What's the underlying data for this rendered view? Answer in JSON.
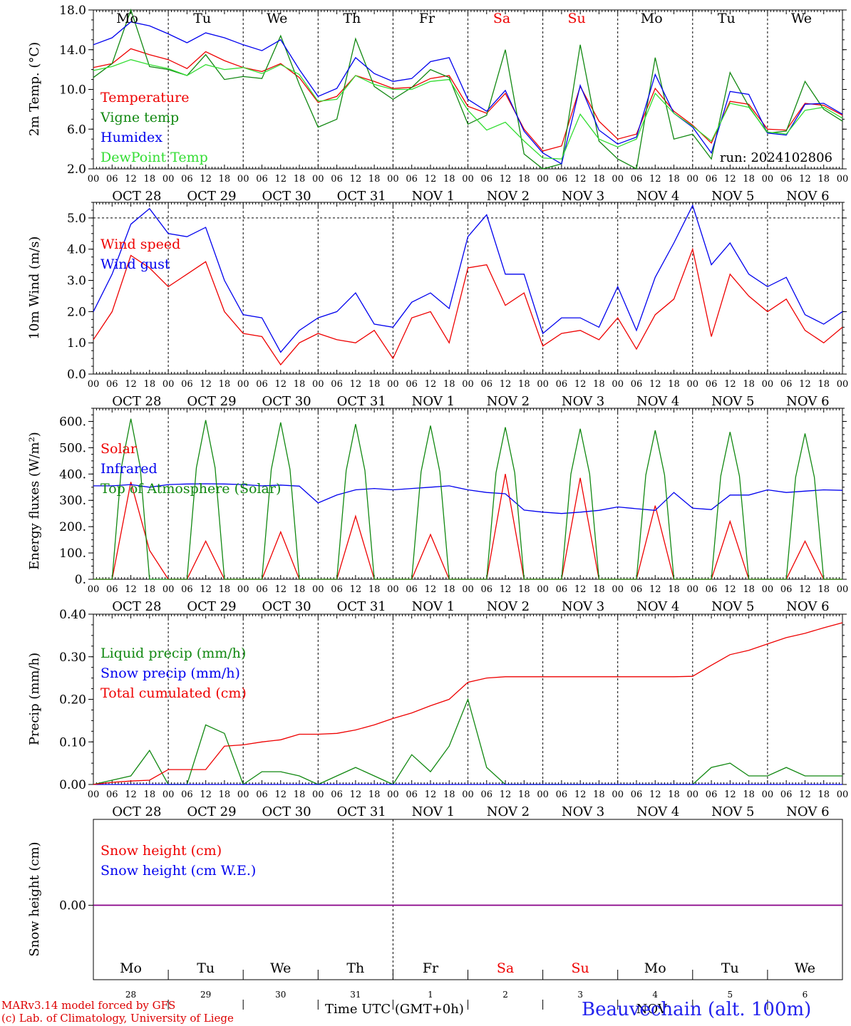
{
  "colors": {
    "red": "#ee0000",
    "green": "#118811",
    "blue": "#0000ee",
    "lightgreen": "#33dd33",
    "purple": "#880088",
    "weekend": "#ee0000"
  },
  "days": {
    "top_weekdays": [
      "Mo",
      "Tu",
      "We",
      "Th",
      "Fr",
      "Sa",
      "Su",
      "Mo",
      "Tu",
      "We"
    ],
    "bottom_weekdays": [
      "Mo",
      "Tu",
      "We",
      "Th",
      "Fr",
      "Sa",
      "Su",
      "Mo",
      "Tu",
      "We"
    ],
    "bottom_daynums": [
      "28",
      "29",
      "30",
      "31",
      "1",
      "2",
      "3",
      "4",
      "5",
      "6"
    ],
    "weekend_indices": [
      5,
      6
    ],
    "hour_ticks": [
      "00",
      "06",
      "12",
      "18"
    ],
    "date_labels": [
      "OCT 28",
      "OCT 29",
      "OCT 30",
      "OCT 31",
      "NOV  1",
      "NOV  2",
      "NOV  3",
      "NOV  4",
      "NOV  5",
      "NOV  6"
    ]
  },
  "chart_data": [
    {
      "type": "line",
      "ylabel": "2m Temp. (°C)",
      "ylim": [
        2.0,
        18.0
      ],
      "yticks": [
        "2.0",
        "6.0",
        "10.0",
        "14.0",
        "18.0"
      ],
      "annotation": "run: 2024102806",
      "x_hours": [
        0,
        6,
        12,
        18,
        24,
        30,
        36,
        42,
        48,
        54,
        60,
        66,
        72,
        78,
        84,
        90,
        96,
        102,
        108,
        114,
        120,
        126,
        132,
        138,
        144,
        150,
        156,
        162,
        168,
        174,
        180,
        186,
        192,
        198,
        204,
        210,
        216,
        222,
        228,
        234,
        240
      ],
      "series": [
        {
          "name": "Temperature",
          "color": "red",
          "values": [
            12.2,
            12.6,
            14.1,
            13.5,
            13.0,
            12.1,
            13.8,
            12.9,
            12.2,
            11.8,
            12.6,
            11.2,
            8.7,
            9.3,
            11.4,
            10.8,
            10.1,
            10.2,
            11.1,
            11.4,
            8.3,
            7.6,
            9.6,
            6.0,
            3.8,
            4.3,
            10.3,
            6.8,
            5.0,
            5.5,
            10.1,
            7.8,
            6.4,
            4.6,
            8.8,
            8.5,
            6.0,
            5.9,
            8.6,
            8.4,
            7.4
          ]
        },
        {
          "name": "Vigne temp",
          "color": "green",
          "values": [
            11.2,
            12.6,
            18.2,
            12.3,
            12.0,
            11.4,
            13.5,
            11.0,
            11.3,
            11.1,
            15.4,
            10.5,
            6.2,
            7.0,
            15.1,
            10.3,
            9.0,
            10.2,
            12.0,
            11.2,
            6.5,
            7.4,
            14.0,
            3.5,
            1.5,
            2.5,
            14.5,
            4.8,
            3.0,
            1.8,
            13.2,
            5.0,
            5.5,
            3.0,
            11.7,
            8.3,
            5.6,
            5.8,
            10.8,
            8.0,
            6.8
          ]
        },
        {
          "name": "Humidex",
          "color": "blue",
          "values": [
            14.5,
            15.2,
            16.8,
            16.4,
            15.6,
            14.7,
            15.7,
            15.2,
            14.5,
            13.9,
            15.0,
            12.0,
            9.3,
            10.1,
            13.2,
            11.6,
            10.8,
            11.1,
            12.8,
            13.2,
            9.0,
            7.8,
            9.9,
            5.8,
            3.6,
            2.5,
            10.4,
            5.9,
            4.5,
            5.2,
            11.5,
            7.6,
            6.2,
            3.6,
            9.8,
            9.5,
            5.6,
            5.4,
            8.5,
            8.6,
            7.5
          ]
        },
        {
          "name": "DewPoint Temp",
          "color": "lightgreen",
          "values": [
            11.9,
            12.3,
            13.0,
            12.5,
            12.1,
            11.4,
            12.5,
            12.0,
            12.2,
            11.6,
            12.5,
            11.5,
            8.8,
            9.0,
            11.4,
            10.5,
            10.0,
            10.0,
            10.8,
            11.0,
            7.9,
            5.9,
            6.7,
            4.8,
            3.1,
            3.0,
            7.5,
            5.0,
            4.2,
            5.0,
            9.6,
            7.6,
            6.3,
            4.8,
            8.6,
            8.2,
            5.7,
            5.5,
            7.9,
            8.2,
            7.1
          ]
        }
      ]
    },
    {
      "type": "line",
      "ylabel": "10m Wind (m/s)",
      "ylim": [
        0.0,
        5.5
      ],
      "yticks": [
        "0.0",
        "1.0",
        "2.0",
        "3.0",
        "4.0",
        "5.0"
      ],
      "ref_line": 5.0,
      "x_hours": [
        0,
        6,
        12,
        18,
        24,
        30,
        36,
        42,
        48,
        54,
        60,
        66,
        72,
        78,
        84,
        90,
        96,
        102,
        108,
        114,
        120,
        126,
        132,
        138,
        144,
        150,
        156,
        162,
        168,
        174,
        180,
        186,
        192,
        198,
        204,
        210,
        216,
        222,
        228,
        234,
        240
      ],
      "series": [
        {
          "name": "Wind speed",
          "color": "red",
          "values": [
            1.1,
            2.0,
            3.8,
            3.4,
            2.8,
            3.2,
            3.6,
            2.0,
            1.3,
            1.2,
            0.3,
            1.0,
            1.3,
            1.1,
            1.0,
            1.4,
            0.5,
            1.8,
            2.0,
            1.0,
            3.4,
            3.5,
            2.2,
            2.6,
            0.9,
            1.3,
            1.4,
            1.1,
            1.8,
            0.8,
            1.9,
            2.4,
            4.0,
            1.2,
            3.2,
            2.5,
            2.0,
            2.4,
            1.4,
            1.0,
            1.5
          ]
        },
        {
          "name": "Wind gust",
          "color": "blue",
          "values": [
            2.0,
            3.2,
            4.8,
            5.3,
            4.5,
            4.4,
            4.7,
            3.0,
            1.9,
            1.8,
            0.7,
            1.4,
            1.8,
            2.0,
            2.6,
            1.6,
            1.5,
            2.3,
            2.6,
            2.1,
            4.4,
            5.1,
            3.2,
            3.2,
            1.3,
            1.8,
            1.8,
            1.5,
            2.8,
            1.4,
            3.1,
            4.2,
            5.4,
            3.5,
            4.2,
            3.2,
            2.8,
            3.1,
            1.9,
            1.6,
            2.0
          ]
        }
      ]
    },
    {
      "type": "line",
      "ylabel": "Energy fluxes (W/m²)",
      "ylim": [
        0,
        650
      ],
      "yticks": [
        "0.",
        "100.",
        "200.",
        "300.",
        "400.",
        "500.",
        "600."
      ],
      "x_hours": [
        0,
        6,
        12,
        18,
        24,
        30,
        36,
        42,
        48,
        54,
        60,
        66,
        72,
        78,
        84,
        90,
        96,
        102,
        108,
        114,
        120,
        126,
        132,
        138,
        144,
        150,
        156,
        162,
        168,
        174,
        180,
        186,
        192,
        198,
        204,
        210,
        216,
        222,
        228,
        234,
        240
      ],
      "series": [
        {
          "name": "Solar",
          "color": "red",
          "values": [
            0,
            0,
            370,
            110,
            0,
            0,
            145,
            0,
            0,
            0,
            180,
            0,
            0,
            0,
            240,
            0,
            0,
            0,
            170,
            0,
            0,
            0,
            400,
            0,
            0,
            0,
            385,
            0,
            0,
            0,
            280,
            0,
            0,
            0,
            220,
            0,
            0,
            0,
            145,
            0,
            0
          ]
        },
        {
          "name": "Infrared",
          "color": "blue",
          "values": [
            355,
            355,
            360,
            350,
            360,
            362,
            363,
            362,
            360,
            355,
            358,
            354,
            290,
            320,
            340,
            345,
            340,
            345,
            350,
            355,
            340,
            330,
            325,
            263,
            255,
            250,
            255,
            262,
            275,
            268,
            262,
            330,
            270,
            265,
            320,
            320,
            340,
            330,
            335,
            340,
            338
          ]
        },
        {
          "name": "Top of Atmosphere (Solar)",
          "color": "green",
          "peaks_at_12": [
            610,
            605,
            596,
            590,
            584,
            578,
            572,
            566,
            560,
            554
          ]
        }
      ]
    },
    {
      "type": "line",
      "ylabel": "Precip (mm/h)",
      "ylim": [
        0.0,
        0.4
      ],
      "yticks": [
        "0.00",
        "0.10",
        "0.20",
        "0.30",
        "0.40"
      ],
      "x_hours": [
        0,
        6,
        12,
        18,
        24,
        30,
        36,
        42,
        48,
        54,
        60,
        66,
        72,
        78,
        84,
        90,
        96,
        102,
        108,
        114,
        120,
        126,
        132,
        138,
        144,
        150,
        156,
        162,
        168,
        174,
        180,
        186,
        192,
        198,
        204,
        210,
        216,
        222,
        228,
        234,
        240
      ],
      "series": [
        {
          "name": "Liquid precip (mm/h)",
          "color": "green",
          "values": [
            0.0,
            0.01,
            0.02,
            0.08,
            0.0,
            0.0,
            0.14,
            0.12,
            0.0,
            0.03,
            0.03,
            0.02,
            0.0,
            0.02,
            0.04,
            0.02,
            0.0,
            0.07,
            0.03,
            0.09,
            0.2,
            0.04,
            0.0,
            0.0,
            0.0,
            0.0,
            0.0,
            0.0,
            0.0,
            0.0,
            0.0,
            0.0,
            0.0,
            0.04,
            0.05,
            0.02,
            0.02,
            0.04,
            0.02,
            0.02,
            0.02
          ]
        },
        {
          "name": "Snow precip (mm/h)",
          "color": "blue",
          "values": [
            0,
            0,
            0,
            0,
            0,
            0,
            0,
            0,
            0,
            0,
            0,
            0,
            0,
            0,
            0,
            0,
            0,
            0,
            0,
            0,
            0,
            0,
            0,
            0,
            0,
            0,
            0,
            0,
            0,
            0,
            0,
            0,
            0,
            0,
            0,
            0,
            0,
            0,
            0,
            0,
            0
          ]
        },
        {
          "name": "Total cumulated (cm)",
          "color": "red",
          "values": [
            0.0,
            0.005,
            0.008,
            0.01,
            0.035,
            0.035,
            0.035,
            0.09,
            0.093,
            0.1,
            0.105,
            0.118,
            0.118,
            0.12,
            0.128,
            0.14,
            0.155,
            0.168,
            0.185,
            0.2,
            0.24,
            0.25,
            0.253,
            0.253,
            0.253,
            0.253,
            0.253,
            0.253,
            0.253,
            0.253,
            0.253,
            0.253,
            0.254,
            0.28,
            0.305,
            0.315,
            0.33,
            0.345,
            0.355,
            0.368,
            0.38
          ]
        }
      ]
    },
    {
      "type": "line",
      "ylabel": "Snow height (cm)",
      "yticks": [
        "0.00"
      ],
      "x_hours": [
        0,
        240
      ],
      "series": [
        {
          "name": "Snow height (cm)",
          "color": "red",
          "values": [
            0.0,
            0.0
          ]
        },
        {
          "name": "Snow height (cm W.E.)",
          "color": "blue",
          "values": [
            0.0,
            0.0
          ]
        }
      ]
    }
  ],
  "footer": {
    "model": "MARv3.14 model forced by GFS",
    "lab": "(c) Lab. of Climatology, University of Liege",
    "time_axis": "Time UTC (GMT+0h)",
    "month": "NOV",
    "station": "Beauvechain (alt. 100m)"
  }
}
